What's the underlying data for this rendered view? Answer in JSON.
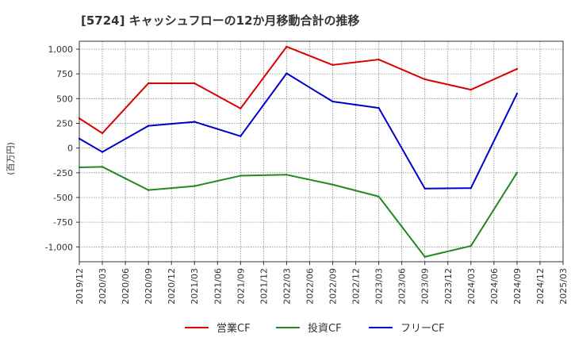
{
  "chart_data": {
    "type": "line",
    "title": "[5724]  キャッシュフローの12か月移動合計の推移",
    "ylabel": "(百万円)",
    "xlabel": "",
    "ylim": [
      -1150,
      1080
    ],
    "yticks": [
      1000,
      750,
      500,
      250,
      0,
      -250,
      -500,
      -750,
      -1000
    ],
    "ytick_labels": [
      "1,000",
      "750",
      "500",
      "250",
      "0",
      "-250",
      "-500",
      "-750",
      "-1,000"
    ],
    "categories": [
      "2019/12",
      "2020/03",
      "2020/06",
      "2020/09",
      "2020/12",
      "2021/03",
      "2021/06",
      "2021/09",
      "2021/12",
      "2022/03",
      "2022/06",
      "2022/09",
      "2022/12",
      "2023/03",
      "2023/06",
      "2023/09",
      "2023/12",
      "2024/03",
      "2024/06",
      "2024/09",
      "2024/12",
      "2025/03"
    ],
    "grid": true,
    "legend_position": "bottom",
    "series": [
      {
        "name": "営業CF",
        "color": "#dd0000",
        "values": [
          300,
          150,
          null,
          655,
          null,
          655,
          null,
          400,
          null,
          1025,
          null,
          840,
          null,
          895,
          null,
          695,
          null,
          590,
          null,
          800,
          null,
          null
        ]
      },
      {
        "name": "投資CF",
        "color": "#228822",
        "values": [
          -195,
          -190,
          null,
          -425,
          null,
          -385,
          null,
          -280,
          null,
          -270,
          null,
          -370,
          null,
          -490,
          null,
          -1100,
          null,
          -990,
          null,
          -250,
          null,
          null
        ]
      },
      {
        "name": "フリーCF",
        "color": "#0000cc",
        "values": [
          95,
          -40,
          null,
          225,
          null,
          265,
          null,
          120,
          null,
          755,
          null,
          470,
          null,
          405,
          null,
          -410,
          null,
          -405,
          null,
          550,
          null,
          null
        ]
      }
    ]
  }
}
